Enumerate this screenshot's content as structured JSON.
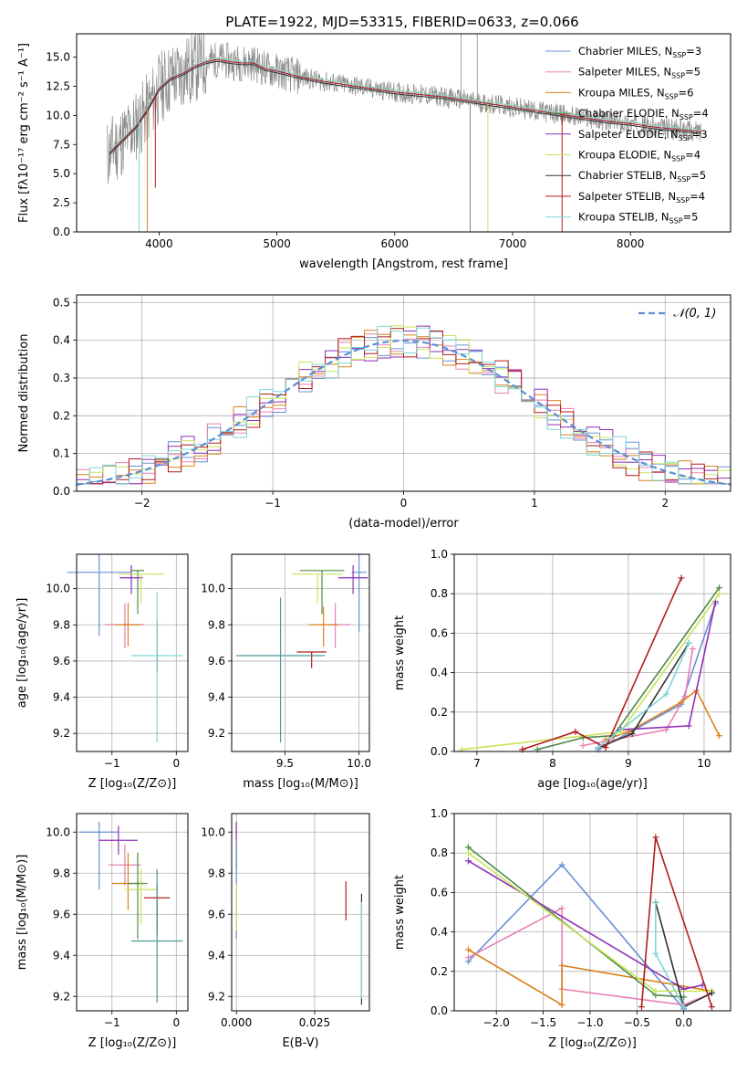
{
  "figure": {
    "title": "PLATE=1922, MJD=53315, FIBERID=0633, z=0.066"
  },
  "chart_data": [
    {
      "id": "spectrum",
      "type": "line",
      "xlabel": "wavelength [Angstrom, rest frame]",
      "ylabel": "Flux [fλ10⁻¹⁷ erg cm⁻² s⁻¹ A⁻¹]",
      "xlim": [
        3300,
        8850
      ],
      "ylim": [
        0,
        17
      ],
      "xticks": [
        4000,
        5000,
        6000,
        7000,
        8000
      ],
      "yticks": [
        0.0,
        2.5,
        5.0,
        7.5,
        10.0,
        12.5,
        15.0
      ],
      "grid": false,
      "legend_position": "top-right",
      "legend": [
        {
          "label": "Chabrier MILES, N",
          "sub": "SSP",
          "tail": "=3",
          "color": "#6a8fd6"
        },
        {
          "label": "Salpeter MILES, N",
          "sub": "SSP",
          "tail": "=5",
          "color": "#e880b4"
        },
        {
          "label": "Kroupa MILES, N",
          "sub": "SSP",
          "tail": "=6",
          "color": "#d9821e"
        },
        {
          "label": "Chabrier ELODIE, N",
          "sub": "SSP",
          "tail": "=4",
          "color": "#4f8a4a"
        },
        {
          "label": "Salpeter ELODIE, N",
          "sub": "SSP",
          "tail": "=3",
          "color": "#8e2fb8"
        },
        {
          "label": "Kroupa ELODIE, N",
          "sub": "SSP",
          "tail": "=4",
          "color": "#c9e35a"
        },
        {
          "label": "Chabrier STELIB, N",
          "sub": "SSP",
          "tail": "=5",
          "color": "#333333"
        },
        {
          "label": "Salpeter STELIB, N",
          "sub": "SSP",
          "tail": "=4",
          "color": "#b01c1c"
        },
        {
          "label": "Kroupa STELIB, N",
          "sub": "SSP",
          "tail": "=5",
          "color": "#7fd6d6"
        }
      ],
      "continuum": {
        "x": [
          3600,
          3700,
          3800,
          3900,
          4000,
          4100,
          4200,
          4300,
          4400,
          4500,
          4600,
          4700,
          4800,
          4900,
          5000,
          5200,
          5400,
          5600,
          5800,
          6000,
          6200,
          6400,
          6600,
          6800,
          7000,
          7200,
          7400,
          7600,
          7800,
          8000,
          8200,
          8400,
          8600
        ],
        "y": [
          7.0,
          8.0,
          9.0,
          10.5,
          12.3,
          13.2,
          13.6,
          14.2,
          14.6,
          14.8,
          14.6,
          14.5,
          14.5,
          14.0,
          13.8,
          13.3,
          12.9,
          12.6,
          12.3,
          12.0,
          11.8,
          11.6,
          11.3,
          11.0,
          10.7,
          10.4,
          10.1,
          9.8,
          9.5,
          9.3,
          9.0,
          8.8,
          8.6
        ]
      },
      "absorption_lines": [
        {
          "x": 3830,
          "depth_to": 0.0,
          "color": "#7fd6d6"
        },
        {
          "x": 3900,
          "depth_to": 0.0,
          "color": "#d9821e"
        },
        {
          "x": 3968,
          "depth_to": 3.8,
          "color": "#b01c1c"
        },
        {
          "x": 6640,
          "depth_to": 0.0,
          "color": "#808080"
        },
        {
          "x": 6790,
          "depth_to": 0.0,
          "color": "#c9e35a"
        },
        {
          "x": 7420,
          "depth_to": 0.0,
          "color": "#b01c1c"
        }
      ],
      "emission_lines": [
        {
          "x": 6563,
          "y": 17.0
        },
        {
          "x": 6700,
          "y": 17.0
        }
      ]
    },
    {
      "id": "residual-histogram",
      "type": "histogram",
      "xlabel": "(data-model)/error",
      "ylabel": "Normed distribution",
      "xlim": [
        -2.5,
        2.5
      ],
      "ylim": [
        0,
        0.52
      ],
      "xticks": [
        -2,
        -1,
        0,
        1,
        2
      ],
      "yticks": [
        0.0,
        0.1,
        0.2,
        0.3,
        0.4,
        0.5
      ],
      "grid": true,
      "legend_position": "top-right",
      "legend": [
        {
          "label": "𝒩(0, 1)",
          "color": "#5a8fd6",
          "style": "dashed"
        }
      ],
      "bin_width": 0.1,
      "series": [
        {
          "name": "Chabrier MILES",
          "color": "#6a8fd6",
          "noise_seed": 1
        },
        {
          "name": "Salpeter MILES",
          "color": "#e880b4",
          "noise_seed": 2
        },
        {
          "name": "Kroupa MILES",
          "color": "#d9821e",
          "noise_seed": 3
        },
        {
          "name": "Salpeter ELODIE",
          "color": "#8e2fb8",
          "noise_seed": 4
        },
        {
          "name": "Kroupa ELODIE",
          "color": "#c9e35a",
          "noise_seed": 5
        },
        {
          "name": "Salpeter STELIB",
          "color": "#b01c1c",
          "noise_seed": 6
        },
        {
          "name": "Kroupa STELIB",
          "color": "#7fd6d6",
          "noise_seed": 7
        }
      ]
    },
    {
      "id": "age-vs-Z",
      "type": "errorbar",
      "xlabel": "Z [log₁₀(Z/Z⊙)]",
      "ylabel": "age  [log₁₀(age/yr)]",
      "xlim": [
        -1.55,
        0.18
      ],
      "ylim": [
        9.1,
        10.19
      ],
      "xticks": [
        -1,
        0
      ],
      "yticks": [
        9.2,
        9.4,
        9.6,
        9.8,
        10.0
      ],
      "grid": true,
      "points": [
        {
          "x": -1.2,
          "xerr": 0.5,
          "y": 10.09,
          "yerr": 0.1,
          "ylo": 9.74,
          "color": "#6a8fd6"
        },
        {
          "x": -0.8,
          "xerr": 0.3,
          "y": 9.8,
          "yerr": 0.12,
          "ylo": 9.67,
          "color": "#e880b4"
        },
        {
          "x": -0.75,
          "xerr": 0.2,
          "y": 9.8,
          "yerr": 0.12,
          "ylo": 9.68,
          "color": "#d9821e"
        },
        {
          "x": -0.6,
          "xerr": 0.1,
          "y": 10.1,
          "yerr": 0.0,
          "ylo": 9.86,
          "color": "#4f8a4a"
        },
        {
          "x": -0.7,
          "xerr": 0.18,
          "y": 10.06,
          "yerr": 0.07,
          "ylo": 9.97,
          "color": "#8e2fb8"
        },
        {
          "x": -0.55,
          "xerr": 0.35,
          "y": 10.08,
          "yerr": 0.0,
          "ylo": 9.92,
          "color": "#c9e35a"
        },
        {
          "x": -0.3,
          "xerr": 0.0,
          "y": 9.65,
          "yerr": 0.0,
          "ylo": 9.54,
          "color": "#333333"
        },
        {
          "x": -0.3,
          "xerr": 0.0,
          "y": 9.65,
          "yerr": 0.17,
          "ylo": 9.54,
          "color": "#b01c1c"
        },
        {
          "x": -0.3,
          "xerr": 0.4,
          "y": 9.63,
          "yerr": 0.35,
          "ylo": 9.15,
          "color": "#7fd6d6"
        }
      ]
    },
    {
      "id": "age-vs-mass",
      "type": "errorbar",
      "xlabel": "mass [log₁₀(M/M⊙)]",
      "ylabel": "",
      "xlim": [
        9.14,
        10.07
      ],
      "ylim": [
        9.1,
        10.19
      ],
      "xticks": [
        9.5,
        10.0
      ],
      "yticks": [
        9.2,
        9.4,
        9.6,
        9.8,
        10.0
      ],
      "grid": true,
      "points": [
        {
          "x": 10.0,
          "xerr": 0.05,
          "y": 10.09,
          "yerr": 0.1,
          "ylo": 9.76,
          "color": "#6a8fd6"
        },
        {
          "x": 9.84,
          "xerr": 0.1,
          "y": 9.8,
          "yerr": 0.12,
          "ylo": 9.67,
          "color": "#e880b4"
        },
        {
          "x": 9.76,
          "xerr": 0.1,
          "y": 9.8,
          "yerr": 0.1,
          "ylo": 9.68,
          "color": "#d9821e"
        },
        {
          "x": 9.75,
          "xerr": 0.15,
          "y": 10.1,
          "yerr": 0.0,
          "ylo": 9.86,
          "color": "#4f8a4a"
        },
        {
          "x": 9.96,
          "xerr": 0.1,
          "y": 10.06,
          "yerr": 0.07,
          "ylo": 9.97,
          "color": "#8e2fb8"
        },
        {
          "x": 9.72,
          "xerr": 0.17,
          "y": 10.08,
          "yerr": 0.0,
          "ylo": 9.92,
          "color": "#c9e35a"
        },
        {
          "x": 9.68,
          "xerr": 0.1,
          "y": 9.65,
          "yerr": 0.0,
          "ylo": 9.56,
          "color": "#b01c1c"
        },
        {
          "x": 9.47,
          "xerr": 0.3,
          "y": 9.63,
          "yerr": 0.32,
          "ylo": 9.15,
          "color": "#4f9a9a"
        }
      ]
    },
    {
      "id": "weight-vs-age",
      "type": "line",
      "xlabel": "age  [log₁₀(age/yr)]",
      "ylabel": "mass weight",
      "xlim": [
        6.7,
        10.35
      ],
      "ylim": [
        0,
        1.0
      ],
      "xticks": [
        7,
        8,
        9,
        10
      ],
      "yticks": [
        0.0,
        0.2,
        0.4,
        0.6,
        0.8,
        1.0
      ],
      "grid": true,
      "series": [
        {
          "name": "Chabrier MILES",
          "color": "#6a8fd6",
          "x": [
            8.6,
            9.7,
            10.15
          ],
          "y": [
            0.01,
            0.24,
            0.75
          ]
        },
        {
          "name": "Salpeter MILES",
          "color": "#e880b4",
          "x": [
            8.4,
            9.5,
            9.75,
            9.85
          ],
          "y": [
            0.03,
            0.11,
            0.28,
            0.52
          ]
        },
        {
          "name": "Kroupa MILES",
          "color": "#d9821e",
          "x": [
            8.7,
            9.0,
            9.7,
            9.9,
            10.2
          ],
          "y": [
            0.06,
            0.1,
            0.25,
            0.31,
            0.08
          ]
        },
        {
          "name": "Chabrier ELODIE",
          "color": "#4f8a4a",
          "x": [
            7.8,
            8.4,
            8.8,
            10.2
          ],
          "y": [
            0.01,
            0.07,
            0.08,
            0.83
          ]
        },
        {
          "name": "Salpeter ELODIE",
          "color": "#8e2fb8",
          "x": [
            8.9,
            9.8,
            10.15
          ],
          "y": [
            0.11,
            0.13,
            0.76
          ]
        },
        {
          "name": "Kroupa ELODIE",
          "color": "#c9e35a",
          "x": [
            6.8,
            8.9,
            10.2
          ],
          "y": [
            0.01,
            0.1,
            0.8
          ]
        },
        {
          "name": "Chabrier STELIB",
          "color": "#333333",
          "x": [
            8.6,
            9.05,
            9.8
          ],
          "y": [
            0.02,
            0.09,
            0.55
          ]
        },
        {
          "name": "Salpeter STELIB",
          "color": "#b01c1c",
          "x": [
            7.6,
            8.3,
            8.7,
            9.7
          ],
          "y": [
            0.01,
            0.1,
            0.02,
            0.88
          ]
        },
        {
          "name": "Kroupa STELIB",
          "color": "#7fd6d6",
          "x": [
            8.6,
            9.5,
            9.8
          ],
          "y": [
            0.02,
            0.29,
            0.55
          ]
        }
      ]
    },
    {
      "id": "mass-vs-Z",
      "type": "errorbar",
      "xlabel": "Z [log₁₀(Z/Z⊙)]",
      "ylabel": "mass [log₁₀(M/M⊙)]",
      "xlim": [
        -1.55,
        0.18
      ],
      "ylim": [
        9.13,
        10.09
      ],
      "xticks": [
        -1,
        0
      ],
      "yticks": [
        9.2,
        9.4,
        9.6,
        9.8,
        10.0
      ],
      "grid": true,
      "points": [
        {
          "x": -1.2,
          "xerr": 0.3,
          "y": 10.0,
          "yerr": 0.05,
          "ylo": 9.72,
          "color": "#6a8fd6"
        },
        {
          "x": -0.8,
          "xerr": 0.25,
          "y": 9.84,
          "yerr": 0.1,
          "ylo": 9.74,
          "color": "#e880b4"
        },
        {
          "x": -0.75,
          "xerr": 0.25,
          "y": 9.75,
          "yerr": 0.15,
          "ylo": 9.62,
          "color": "#d9821e"
        },
        {
          "x": -0.6,
          "xerr": 0.15,
          "y": 9.75,
          "yerr": 0.15,
          "ylo": 9.48,
          "color": "#4f8a4a"
        },
        {
          "x": -0.9,
          "xerr": 0.3,
          "y": 9.96,
          "yerr": 0.07,
          "ylo": 9.89,
          "color": "#8e2fb8"
        },
        {
          "x": -0.55,
          "xerr": 0.25,
          "y": 9.72,
          "yerr": 0.1,
          "ylo": 9.55,
          "color": "#c9e35a"
        },
        {
          "x": -0.3,
          "xerr": 0.0,
          "y": 9.68,
          "yerr": 0.0,
          "ylo": 9.5,
          "color": "#333333"
        },
        {
          "x": -0.3,
          "xerr": 0.2,
          "y": 9.68,
          "yerr": 0.07,
          "ylo": 9.5,
          "color": "#b01c1c"
        },
        {
          "x": -0.3,
          "xerr": 0.4,
          "y": 9.47,
          "yerr": 0.35,
          "ylo": 9.17,
          "color": "#4f9a9a"
        }
      ]
    },
    {
      "id": "mass-vs-EBV",
      "type": "errorbar",
      "xlabel": "E(B-V)",
      "ylabel": "",
      "xlim": [
        -0.0015,
        0.0425
      ],
      "ylim": [
        9.13,
        10.09
      ],
      "xticks": [
        0.0,
        0.025
      ],
      "xtick_labels": [
        "0.000",
        "0.025"
      ],
      "yticks": [
        9.2,
        9.4,
        9.6,
        9.8,
        10.0
      ],
      "grid": true,
      "points": [
        {
          "x": 0.0,
          "y": 10.05,
          "ylo": 9.82,
          "color": "#8e2fb8"
        },
        {
          "x": 0.0,
          "y": 9.96,
          "ylo": 9.48,
          "color": "#6a8fd6"
        },
        {
          "x": 0.0,
          "y": 9.75,
          "ylo": 9.52,
          "color": "#c9e35a"
        },
        {
          "x": 0.035,
          "y": 9.76,
          "ylo": 9.57,
          "color": "#b01c1c"
        },
        {
          "x": 0.04,
          "y": 9.7,
          "ylo": 9.16,
          "color": "#333333"
        },
        {
          "x": 0.04,
          "y": 9.66,
          "ylo": 9.19,
          "color": "#7fd6d6"
        }
      ]
    },
    {
      "id": "weight-vs-Z",
      "type": "line",
      "xlabel": "Z [log₁₀(Z/Z⊙)]",
      "ylabel": "mass weight",
      "xlim": [
        -2.45,
        0.5
      ],
      "ylim": [
        0,
        1.0
      ],
      "xticks": [
        -2.0,
        -1.5,
        -1.0,
        -0.5,
        0.0
      ],
      "yticks": [
        0.0,
        0.2,
        0.4,
        0.6,
        0.8,
        1.0
      ],
      "grid": true,
      "series": [
        {
          "name": "Chabrier MILES",
          "color": "#6a8fd6",
          "x": [
            -2.3,
            -1.3,
            0.0
          ],
          "y": [
            0.25,
            0.74,
            0.01
          ]
        },
        {
          "name": "Salpeter MILES",
          "color": "#e880b4",
          "x": [
            -2.3,
            -1.3,
            -1.3,
            0.0,
            0.3
          ],
          "y": [
            0.27,
            0.52,
            0.11,
            0.03,
            0.09
          ]
        },
        {
          "name": "Kroupa MILES",
          "color": "#d9821e",
          "x": [
            -2.3,
            -1.3,
            -1.3,
            0.3
          ],
          "y": [
            0.31,
            0.03,
            0.23,
            0.1
          ]
        },
        {
          "name": "Chabrier ELODIE",
          "color": "#4f8a4a",
          "x": [
            -2.3,
            -0.3,
            0.0
          ],
          "y": [
            0.83,
            0.08,
            0.07
          ]
        },
        {
          "name": "Salpeter ELODIE",
          "color": "#8e2fb8",
          "x": [
            -2.3,
            0.0,
            0.2
          ],
          "y": [
            0.76,
            0.11,
            0.13
          ]
        },
        {
          "name": "Kroupa ELODIE",
          "color": "#c9e35a",
          "x": [
            -2.3,
            -0.3,
            0.3
          ],
          "y": [
            0.8,
            0.1,
            0.1
          ]
        },
        {
          "name": "Chabrier STELIB",
          "color": "#333333",
          "x": [
            -0.3,
            0.0,
            0.3
          ],
          "y": [
            0.55,
            0.02,
            0.09
          ]
        },
        {
          "name": "Salpeter STELIB",
          "color": "#b01c1c",
          "x": [
            -0.45,
            -0.3,
            0.3
          ],
          "y": [
            0.02,
            0.88,
            0.02
          ]
        },
        {
          "name": "Kroupa STELIB",
          "color": "#7fd6d6",
          "x": [
            -0.3,
            -0.3,
            0.0
          ],
          "y": [
            0.55,
            0.29,
            0.02
          ]
        }
      ]
    }
  ]
}
